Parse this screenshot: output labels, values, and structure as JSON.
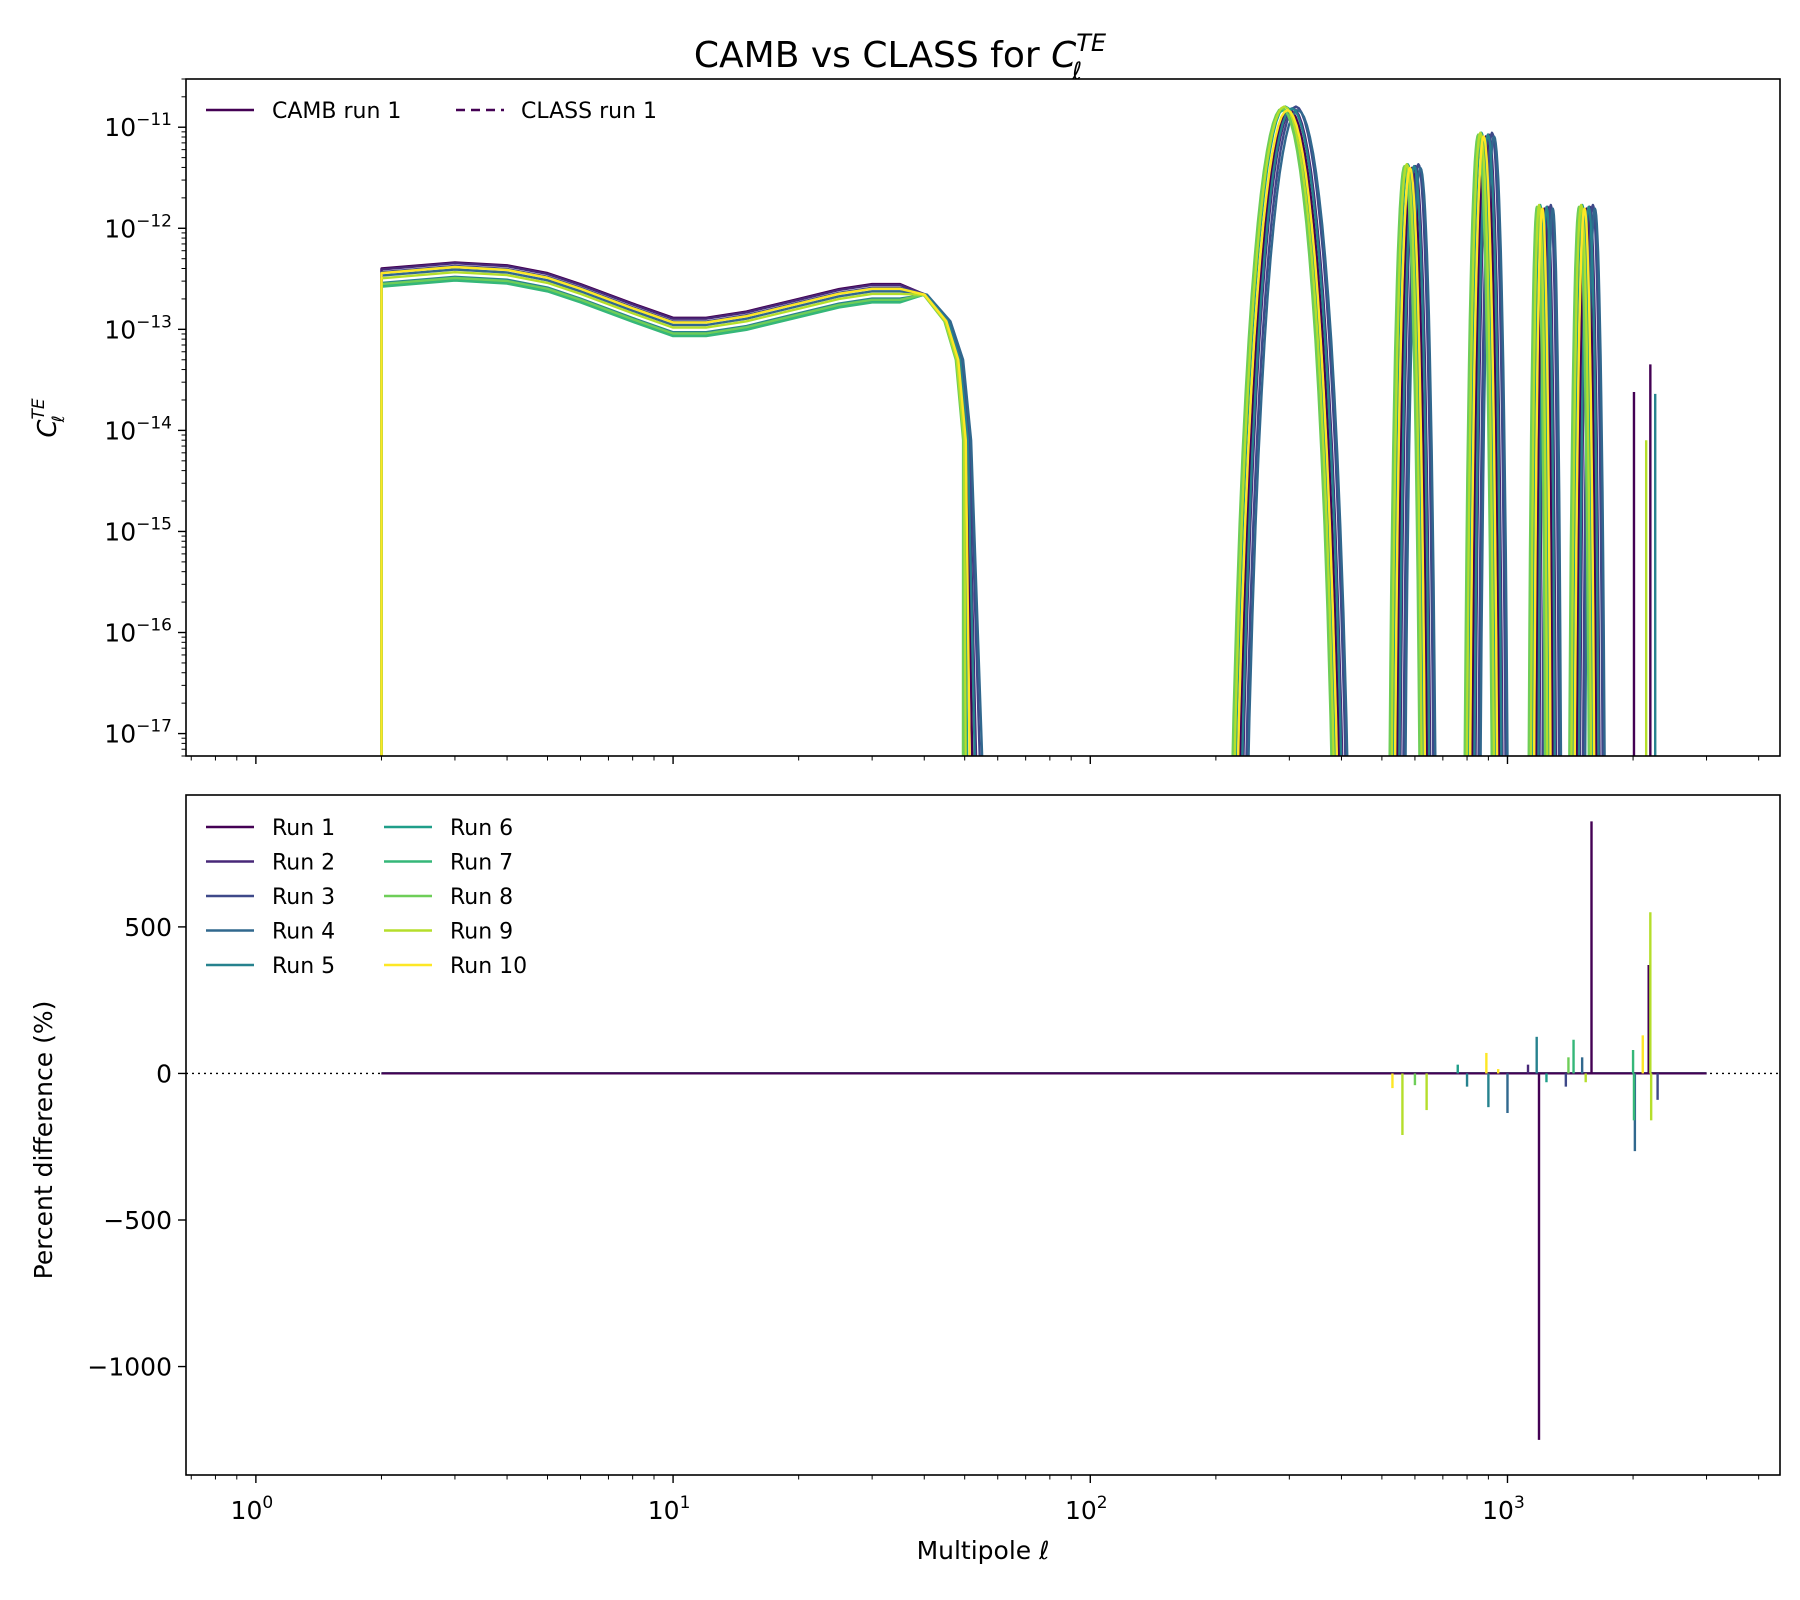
{
  "figure": {
    "title_main": "CAMB vs CLASS for ",
    "title_sym": "C",
    "title_sup": "TE",
    "title_sub": "ℓ"
  },
  "colors": [
    "#440154",
    "#482878",
    "#3e4989",
    "#31688e",
    "#26828e",
    "#1f9e89",
    "#35b779",
    "#6ece58",
    "#b5de2b",
    "#fde725"
  ],
  "chart_data": [
    {
      "type": "line",
      "panel": "top",
      "ylabel_sym": "C",
      "ylabel_sup": "TE",
      "ylabel_sub": "ℓ",
      "xscale": "log",
      "yscale": "log",
      "xlim": [
        0.68,
        4500
      ],
      "ylim": [
        6e-18,
        3e-11
      ],
      "x_ticks": [
        1,
        10,
        100,
        1000
      ],
      "x_tick_exps": [
        "0",
        "1",
        "2",
        "3"
      ],
      "y_ticks": [
        1e-17,
        1e-16,
        1e-15,
        1e-14,
        1e-13,
        1e-12,
        1e-11
      ],
      "y_tick_exps": [
        "−17",
        "−16",
        "−15",
        "−14",
        "−13",
        "−12",
        "−11"
      ],
      "tick_base": "10",
      "legend": {
        "location": "upper left",
        "ncol": 2,
        "entries": [
          {
            "label": "CAMB run 1",
            "style": "solid"
          },
          {
            "label": "CLASS run 1",
            "style": "dashed"
          }
        ]
      },
      "series_note_count": 10,
      "plateau_start_l": 2,
      "plateau_points": [
        [
          2,
          4e-13
        ],
        [
          3,
          4.6e-13
        ],
        [
          4,
          4.3e-13
        ],
        [
          5,
          3.6e-13
        ],
        [
          6,
          2.8e-13
        ],
        [
          8,
          1.8e-13
        ],
        [
          10,
          1.3e-13
        ],
        [
          12,
          1.3e-13
        ],
        [
          15,
          1.5e-13
        ],
        [
          20,
          2e-13
        ],
        [
          25,
          2.5e-13
        ],
        [
          30,
          2.8e-13
        ],
        [
          35,
          2.8e-13
        ],
        [
          40,
          2.2e-13
        ],
        [
          45,
          1.2e-13
        ],
        [
          48,
          5e-14
        ],
        [
          50,
          8e-15
        ]
      ],
      "plateau_scale": [
        1.0,
        0.98,
        0.92,
        0.85,
        0.72,
        0.68,
        0.66,
        0.7,
        0.8,
        0.9
      ],
      "zero_crossing_shift": [
        1.04,
        1.07,
        1.1,
        1.12,
        1.06,
        1.0,
        0.98,
        0.97,
        0.99,
        1.02
      ],
      "peaks": [
        {
          "l_start": 210,
          "l_end": 410,
          "peak": 1.6e-11
        },
        {
          "l_start": 520,
          "l_end": 640,
          "peak": 4.3e-12
        },
        {
          "l_start": 790,
          "l_end": 950,
          "peak": 8.8e-12
        },
        {
          "l_start": 1130,
          "l_end": 1270,
          "peak": 1.7e-12
        },
        {
          "l_start": 1410,
          "l_end": 1620,
          "peak": 1.7e-12
        }
      ],
      "spikes": [
        [
          2010,
          2.4e-14
        ],
        [
          2200,
          4.5e-14
        ],
        [
          2260,
          2.3e-14
        ],
        [
          2150,
          8e-15
        ]
      ]
    },
    {
      "type": "line",
      "panel": "bottom",
      "xlabel": "Multipole ℓ",
      "ylabel": "Percent difference (%)",
      "xscale": "log",
      "xlim": [
        0.68,
        4500
      ],
      "ylim": [
        -1370,
        950
      ],
      "x_ticks": [
        1,
        10,
        100,
        1000
      ],
      "x_tick_exps": [
        "0",
        "1",
        "2",
        "3"
      ],
      "y_ticks": [
        -1000,
        -500,
        0,
        500
      ],
      "y_tick_labels": [
        "−1000",
        "−500",
        "0",
        "500"
      ],
      "zero_line": "dotted",
      "series": [
        {
          "name": "Run 1"
        },
        {
          "name": "Run 2"
        },
        {
          "name": "Run 3"
        },
        {
          "name": "Run 4"
        },
        {
          "name": "Run 5"
        },
        {
          "name": "Run 6"
        },
        {
          "name": "Run 7"
        },
        {
          "name": "Run 8"
        },
        {
          "name": "Run 9"
        },
        {
          "name": "Run 10"
        }
      ],
      "legend": {
        "location": "upper left",
        "ncol": 2
      },
      "x_range": [
        2,
        3000
      ],
      "spikes": [
        {
          "run": 0,
          "l": 1190,
          "value": -1250
        },
        {
          "run": 0,
          "l": 1590,
          "value": 860
        },
        {
          "run": 0,
          "l": 2180,
          "value": 370
        },
        {
          "run": 4,
          "l": 1175,
          "value": 125
        },
        {
          "run": 8,
          "l": 2200,
          "value": 550
        },
        {
          "run": 8,
          "l": 2210,
          "value": -160
        },
        {
          "run": 3,
          "l": 2020,
          "value": -265
        },
        {
          "run": 8,
          "l": 560,
          "value": -210
        },
        {
          "run": 8,
          "l": 640,
          "value": -125
        },
        {
          "run": 3,
          "l": 1000,
          "value": -135
        },
        {
          "run": 4,
          "l": 800,
          "value": -45
        },
        {
          "run": 4,
          "l": 900,
          "value": -115
        },
        {
          "run": 2,
          "l": 1380,
          "value": -45
        },
        {
          "run": 6,
          "l": 1440,
          "value": 115
        },
        {
          "run": 7,
          "l": 1400,
          "value": 55
        },
        {
          "run": 9,
          "l": 890,
          "value": 70
        },
        {
          "run": 9,
          "l": 2110,
          "value": 130
        },
        {
          "run": 9,
          "l": 530,
          "value": -50
        },
        {
          "run": 6,
          "l": 2000,
          "value": 80
        },
        {
          "run": 6,
          "l": 2010,
          "value": -160
        },
        {
          "run": 2,
          "l": 2290,
          "value": -90
        },
        {
          "run": 5,
          "l": 1240,
          "value": -30
        },
        {
          "run": 7,
          "l": 600,
          "value": -40
        },
        {
          "run": 1,
          "l": 1120,
          "value": 30
        },
        {
          "run": 3,
          "l": 1510,
          "value": 55
        },
        {
          "run": 8,
          "l": 1540,
          "value": -30
        },
        {
          "run": 5,
          "l": 760,
          "value": 30
        },
        {
          "run": 9,
          "l": 950,
          "value": 15
        }
      ]
    }
  ]
}
